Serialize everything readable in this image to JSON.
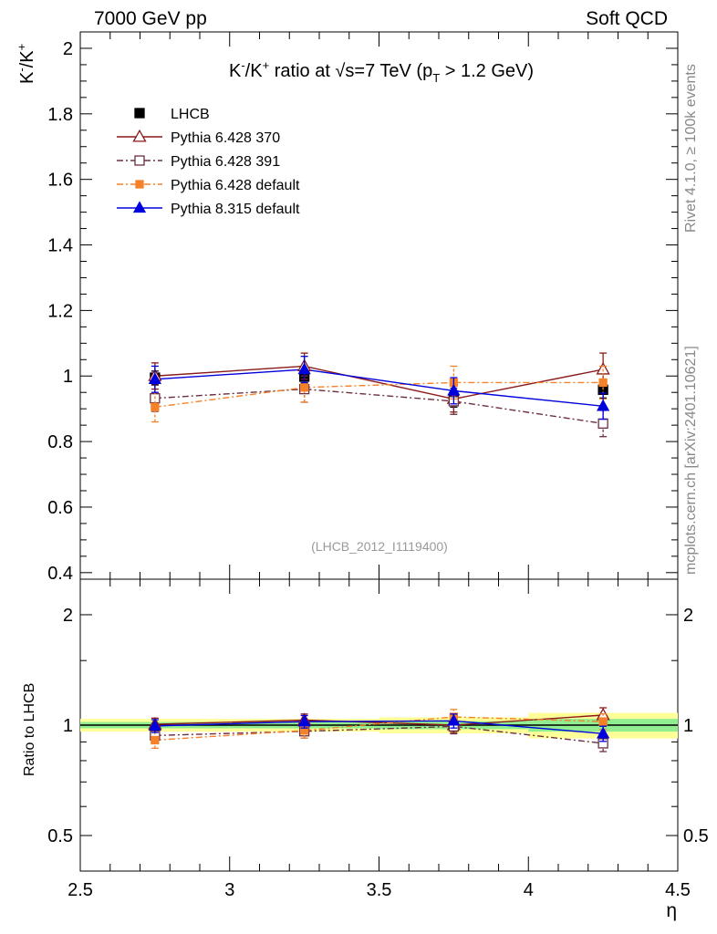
{
  "header": {
    "left": "7000 GeV pp",
    "right": "Soft QCD"
  },
  "side_labels": {
    "top": "Rivet 4.1.0, ≥ 100k events",
    "bottom": "mcplots.cern.ch [arXiv:2401.10621]"
  },
  "watermark": "(LHCB_2012_I1119400)",
  "colors": {
    "LHCB": "#000000",
    "Pythia 6.428 370": "#8b1a1a",
    "Pythia 6.428 391": "#6b3040",
    "Pythia 6.428 default": "#f5822a",
    "Pythia 8.315 default": "#0000dd",
    "band_inner": "#90ee90",
    "band_outer": "#ffff99"
  },
  "chart_data": [
    {
      "type": "scatter",
      "panel": "main",
      "title": "K⁻/K⁺ ratio at √s=7 TeV (p_T > 1.2 GeV)",
      "ylabel": "K⁻/K⁺",
      "xlabel": "",
      "xlim": [
        2.5,
        4.5
      ],
      "ylim": [
        0.38,
        2.05
      ],
      "yticks": [
        0.4,
        0.6,
        0.8,
        1,
        1.2,
        1.4,
        1.6,
        1.8,
        2
      ],
      "ytick_labels": [
        "0.4",
        "0.6",
        "0.8",
        "1",
        "1.2",
        "1.4",
        "1.6",
        "1.8",
        "2"
      ],
      "legend_position": "top-left",
      "x": [
        2.75,
        3.25,
        3.75,
        4.25
      ],
      "series": [
        {
          "name": "LHCB",
          "values": [
            0.995,
            0.998,
            0.93,
            0.958
          ],
          "errors": [
            0.02,
            0.02,
            0.025,
            0.025
          ],
          "marker": "square-filled",
          "line": "none"
        },
        {
          "name": "Pythia 6.428 370",
          "values": [
            1.0,
            1.03,
            0.93,
            1.02
          ],
          "errors": [
            0.04,
            0.04,
            0.04,
            0.05
          ],
          "marker": "triangle-open",
          "line": "solid"
        },
        {
          "name": "Pythia 6.428 391",
          "values": [
            0.932,
            0.96,
            0.923,
            0.855
          ],
          "errors": [
            0.04,
            0.04,
            0.04,
            0.04
          ],
          "marker": "square-open",
          "line": "dashdot"
        },
        {
          "name": "Pythia 6.428 default",
          "values": [
            0.905,
            0.965,
            0.98,
            0.98
          ],
          "errors": [
            0.045,
            0.045,
            0.05,
            0.05
          ],
          "marker": "square-filled-small",
          "line": "dashdot"
        },
        {
          "name": "Pythia 8.315 default",
          "values": [
            0.99,
            1.02,
            0.955,
            0.908
          ],
          "errors": [
            0.04,
            0.04,
            0.04,
            0.04
          ],
          "marker": "triangle-filled",
          "line": "solid"
        }
      ]
    },
    {
      "type": "scatter",
      "panel": "ratio",
      "ylabel": "Ratio to LHCB",
      "xlabel": "η",
      "xlim": [
        2.5,
        4.5
      ],
      "ylim": [
        0.4,
        2.5
      ],
      "yscale": "log",
      "yticks": [
        0.5,
        1,
        2
      ],
      "ytick_labels": [
        "0.5",
        "1",
        "2"
      ],
      "xticks": [
        2.5,
        3,
        3.5,
        4,
        4.5
      ],
      "xtick_labels": [
        "2.5",
        "3",
        "3.5",
        "4",
        "4.5"
      ],
      "x": [
        2.75,
        3.25,
        3.75,
        4.25
      ],
      "bin_edges": [
        2.5,
        3.0,
        3.5,
        4.0,
        4.5
      ],
      "band_inner": [
        [
          0.98,
          1.02
        ],
        [
          0.98,
          1.02
        ],
        [
          0.975,
          1.025
        ],
        [
          0.96,
          1.04
        ]
      ],
      "band_outer": [
        [
          0.96,
          1.04
        ],
        [
          0.96,
          1.04
        ],
        [
          0.95,
          1.05
        ],
        [
          0.92,
          1.08
        ]
      ],
      "series": [
        {
          "name": "Pythia 6.428 370",
          "values": [
            1.005,
            1.032,
            1.0,
            1.065
          ],
          "errors": [
            0.04,
            0.04,
            0.045,
            0.05
          ]
        },
        {
          "name": "Pythia 6.428 391",
          "values": [
            0.937,
            0.962,
            0.992,
            0.892
          ],
          "errors": [
            0.04,
            0.04,
            0.045,
            0.045
          ]
        },
        {
          "name": "Pythia 6.428 default",
          "values": [
            0.91,
            0.967,
            1.053,
            1.023
          ],
          "errors": [
            0.045,
            0.045,
            0.05,
            0.05
          ]
        },
        {
          "name": "Pythia 8.315 default",
          "values": [
            0.995,
            1.022,
            1.027,
            0.948
          ],
          "errors": [
            0.04,
            0.04,
            0.045,
            0.045
          ]
        }
      ]
    }
  ]
}
